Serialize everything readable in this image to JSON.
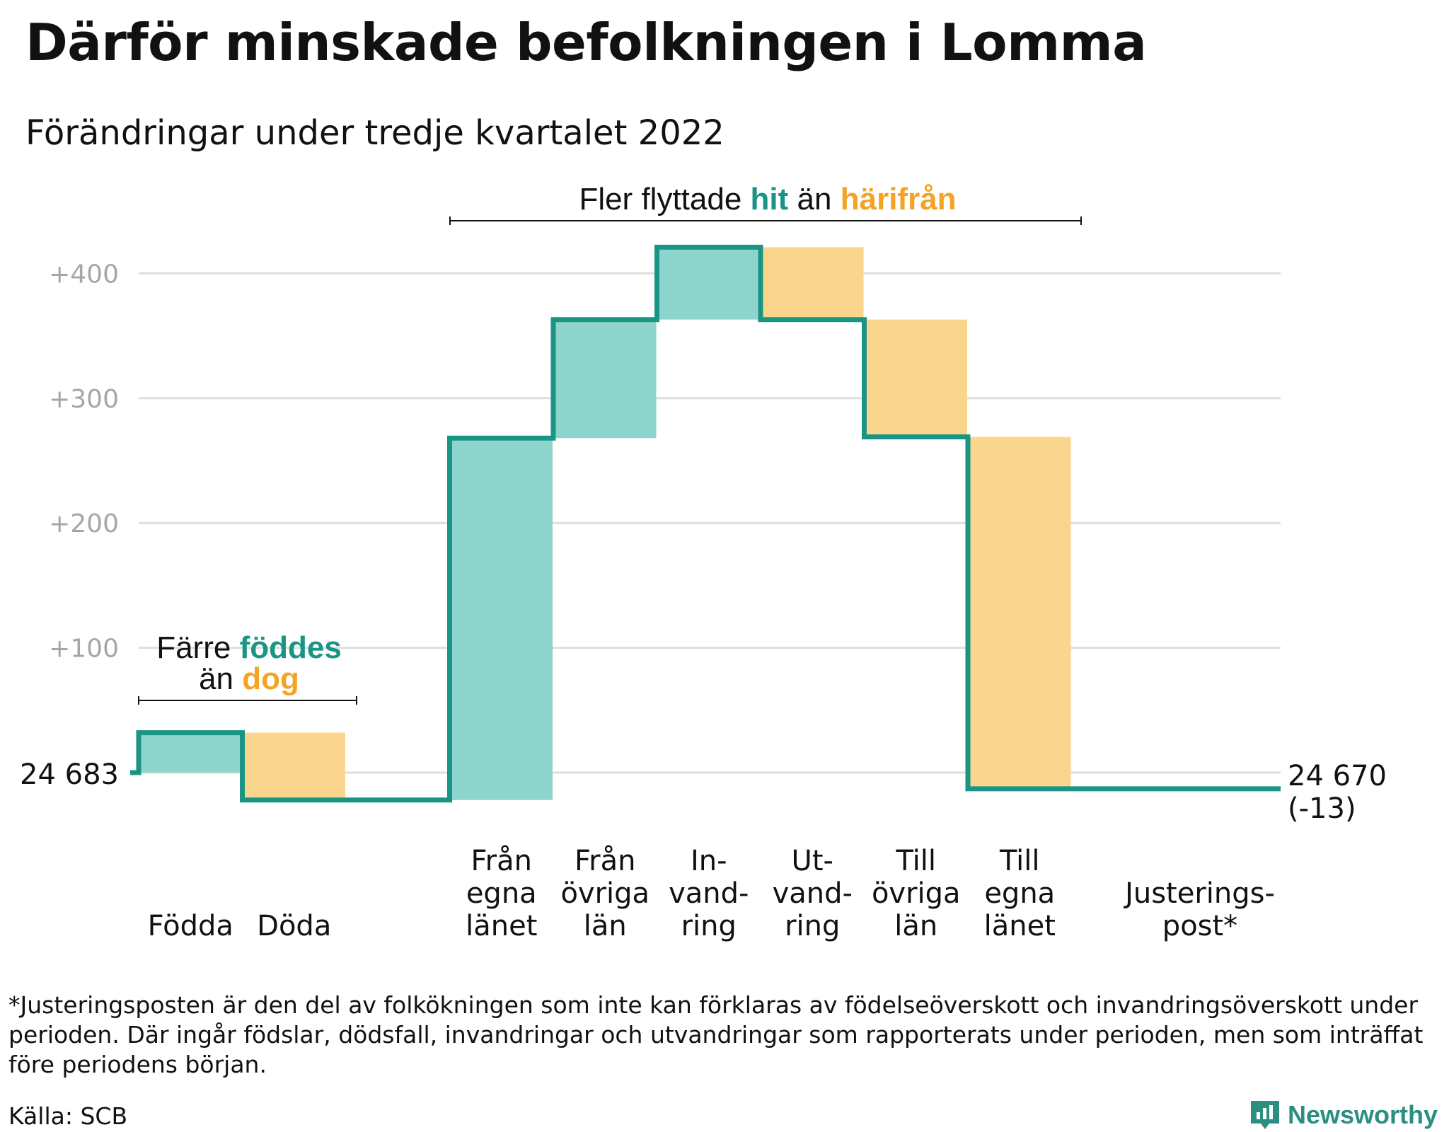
{
  "title": "Därför minskade befolkningen i Lomma",
  "subtitle": "Förändringar under tredje kvartalet 2022",
  "colors": {
    "teal": "#1a9585",
    "teal_fill": "#8dd5cc",
    "orange": "#f4a322",
    "orange_fill": "#fad58e",
    "grid": "#dedede",
    "tick_text": "#a6a6a6"
  },
  "annotations": {
    "birth": {
      "line1": "Färre",
      "line1_accent": "föddes",
      "line2": "än",
      "line2_accent": "dog"
    },
    "moves": {
      "pre": "Fler flyttade",
      "accent1": "hit",
      "mid": "än",
      "accent2": "härifrån"
    }
  },
  "start_label": "24 683",
  "end_label": "24 670",
  "end_change": "(-13)",
  "footnote": "*Justeringsposten är den del av folkökningen som inte kan förklaras av födelseöverskott och invandringsöverskott under perioden. Där ingår födslar, dödsfall, invandringar och utvandringar som rapporterats under perioden, men som inträffat före periodens början.",
  "source": "Källa: SCB",
  "brand": "Newsworthy",
  "chart_data": {
    "type": "waterfall",
    "baseline": 24683,
    "end_value": 24670,
    "total_change": -13,
    "ylim": [
      -25,
      425
    ],
    "y_ticks": [
      {
        "value": 100,
        "label": "+100"
      },
      {
        "value": 200,
        "label": "+200"
      },
      {
        "value": 300,
        "label": "+300"
      },
      {
        "value": 400,
        "label": "+400"
      }
    ],
    "grid": true,
    "categories": [
      {
        "label_lines": [
          "Födda"
        ],
        "change": 32
      },
      {
        "label_lines": [
          "Döda"
        ],
        "change": -54
      },
      {
        "label_lines": [],
        "change": 0
      },
      {
        "label_lines": [
          "Från",
          "egna",
          "länet"
        ],
        "change": 290
      },
      {
        "label_lines": [
          "Från",
          "övriga",
          "län"
        ],
        "change": 95
      },
      {
        "label_lines": [
          "In-",
          "vand-",
          "ring"
        ],
        "change": 58
      },
      {
        "label_lines": [
          "Ut-",
          "vand-",
          "ring"
        ],
        "change": -58
      },
      {
        "label_lines": [
          "Till",
          "övriga",
          "län"
        ],
        "change": -94
      },
      {
        "label_lines": [
          "Till",
          "egna",
          "länet"
        ],
        "change": -282
      },
      {
        "label_lines": [],
        "change": 0
      },
      {
        "label_lines": [
          "Justerings-",
          "post*"
        ],
        "change": 0
      }
    ],
    "step_levels": [
      0,
      32,
      -22,
      -22,
      268,
      363,
      421,
      363,
      269,
      -13,
      -13,
      -13
    ],
    "steps_with_fill": [
      0,
      1,
      3,
      4,
      5,
      6,
      7,
      8
    ]
  }
}
